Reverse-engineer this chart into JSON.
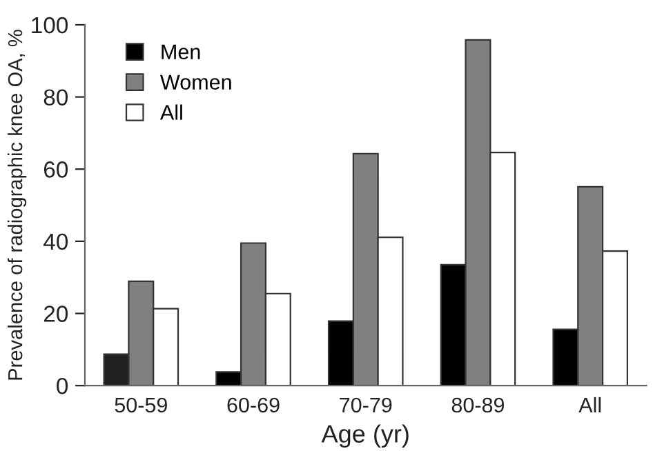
{
  "chart_data": {
    "type": "bar",
    "xlabel": "Age (yr)",
    "ylabel": "Prevalence of radiographic knee OA, %",
    "categories": [
      "50-59",
      "60-69",
      "70-79",
      "80-89",
      "All"
    ],
    "series": [
      {
        "name": "Men",
        "color": "#000000",
        "colors": [
          "#222222",
          "#000000",
          "#000000",
          "#000000",
          "#000000"
        ],
        "values": [
          8.7,
          3.8,
          17.9,
          33.5,
          15.6
        ]
      },
      {
        "name": "Women",
        "color": "#808080",
        "values": [
          28.9,
          39.5,
          64.3,
          95.8,
          55.1
        ]
      },
      {
        "name": "All",
        "color": "#ffffff",
        "values": [
          21.3,
          25.5,
          41.1,
          64.6,
          37.3
        ]
      }
    ],
    "ylim": [
      0,
      100
    ],
    "yticks": [
      0,
      20,
      40,
      60,
      80,
      100
    ],
    "grid": false,
    "legend": "top left"
  }
}
